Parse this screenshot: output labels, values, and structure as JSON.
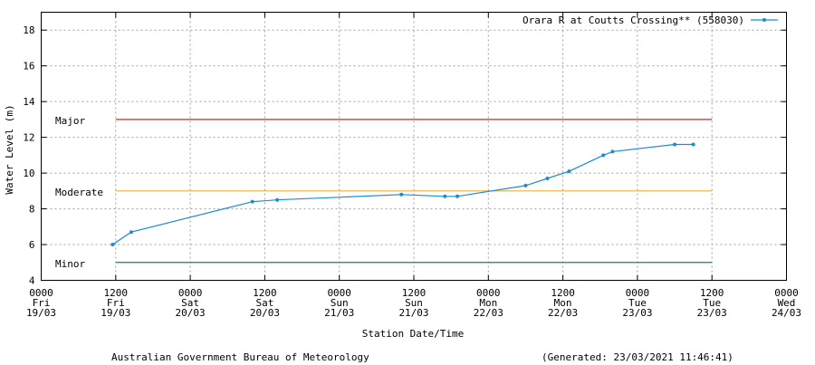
{
  "chart_data": {
    "type": "line",
    "ylabel": "Water Level (m)",
    "xlabel": "Station Date/Time",
    "ylim": [
      4,
      19
    ],
    "y_ticks": [
      4,
      6,
      8,
      10,
      12,
      14,
      16,
      18
    ],
    "x_range_hours": [
      0,
      120
    ],
    "x_ticks": [
      {
        "hour": 0,
        "time": "0000",
        "day": "Fri",
        "date": "19/03"
      },
      {
        "hour": 12,
        "time": "1200",
        "day": "Fri",
        "date": "19/03"
      },
      {
        "hour": 24,
        "time": "0000",
        "day": "Sat",
        "date": "20/03"
      },
      {
        "hour": 36,
        "time": "1200",
        "day": "Sat",
        "date": "20/03"
      },
      {
        "hour": 48,
        "time": "0000",
        "day": "Sun",
        "date": "21/03"
      },
      {
        "hour": 60,
        "time": "1200",
        "day": "Sun",
        "date": "21/03"
      },
      {
        "hour": 72,
        "time": "0000",
        "day": "Mon",
        "date": "22/03"
      },
      {
        "hour": 84,
        "time": "1200",
        "day": "Mon",
        "date": "22/03"
      },
      {
        "hour": 96,
        "time": "0000",
        "day": "Tue",
        "date": "23/03"
      },
      {
        "hour": 108,
        "time": "1200",
        "day": "Tue",
        "date": "23/03"
      },
      {
        "hour": 120,
        "time": "0000",
        "day": "Wed",
        "date": "24/03"
      }
    ],
    "grid": true,
    "legend_position": "top-right",
    "series": [
      {
        "name": "Orara R at Coutts Crossing** (558030)",
        "color": "#1f8ad6",
        "points": [
          [
            11.5,
            6.0
          ],
          [
            14.5,
            6.7
          ],
          [
            34.0,
            8.4
          ],
          [
            38.0,
            8.5
          ],
          [
            58.0,
            8.8
          ],
          [
            65.0,
            8.7
          ],
          [
            67.0,
            8.7
          ],
          [
            78.0,
            9.3
          ],
          [
            81.5,
            9.7
          ],
          [
            85.0,
            10.1
          ],
          [
            90.5,
            11.0
          ],
          [
            92.0,
            11.2
          ],
          [
            102.0,
            11.6
          ],
          [
            105.0,
            11.6
          ]
        ]
      }
    ],
    "thresholds": [
      {
        "label": "Major",
        "value": 13,
        "color": "#e02020",
        "x_range": [
          12,
          108
        ]
      },
      {
        "label": "Moderate",
        "value": 9,
        "color": "#f0b030",
        "x_range": [
          12,
          108
        ]
      },
      {
        "label": "Minor",
        "value": 5,
        "color": "#208050",
        "x_range": [
          12,
          108
        ]
      }
    ]
  },
  "footer": {
    "agency": "Australian Government Bureau of Meteorology",
    "generated": "(Generated: 23/03/2021 11:46:41)"
  }
}
